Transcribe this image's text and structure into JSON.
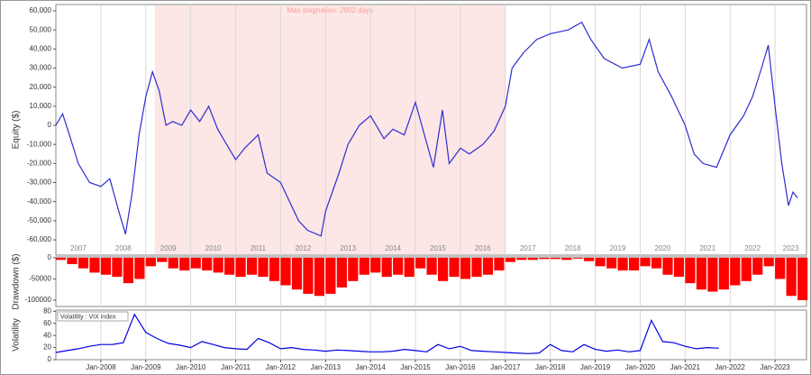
{
  "chart_data": [
    {
      "type": "line",
      "y_label": "Equity ($)",
      "color": "#2d2dd2",
      "xlim": [
        2007.0,
        2023.7
      ],
      "ylim": [
        -68000,
        63300
      ],
      "yticks": [
        {
          "value": 60000,
          "label": "60,000"
        },
        {
          "value": 50000,
          "label": "50,000"
        },
        {
          "value": 40000,
          "label": "40,000"
        },
        {
          "value": 30000,
          "label": "30,000"
        },
        {
          "value": 20000,
          "label": "20,000"
        },
        {
          "value": 10000,
          "label": "10,000"
        },
        0,
        {
          "value": -10000,
          "label": "-10,000"
        },
        {
          "value": -20000,
          "label": "-20,000"
        },
        {
          "value": -30000,
          "label": "-30,000"
        },
        {
          "value": -40000,
          "label": "-40,000"
        },
        {
          "value": -50000,
          "label": "-50,000"
        },
        {
          "value": -60000,
          "label": "-60,000"
        }
      ],
      "xticks": [
        {
          "value": 2007.5,
          "label": "2007"
        },
        {
          "value": 2008.5,
          "label": "2008"
        },
        {
          "value": 2009.5,
          "label": "2009"
        },
        {
          "value": 2010.5,
          "label": "2010"
        },
        {
          "value": 2011.5,
          "label": "2011"
        },
        {
          "value": 2012.5,
          "label": "2012"
        },
        {
          "value": 2013.5,
          "label": "2013"
        },
        {
          "value": 2014.5,
          "label": "2014"
        },
        {
          "value": 2015.5,
          "label": "2015"
        },
        {
          "value": 2016.5,
          "label": "2016"
        },
        {
          "value": 2017.5,
          "label": "2017"
        },
        {
          "value": 2018.5,
          "label": "2018"
        },
        {
          "value": 2019.5,
          "label": "2019"
        },
        {
          "value": 2020.5,
          "label": "2020"
        },
        {
          "value": 2021.5,
          "label": "2021"
        },
        {
          "value": 2022.5,
          "label": "2022"
        },
        {
          "value": 2023.35,
          "label": "2023"
        }
      ],
      "shade": {
        "x": [
          2009.2,
          2017.0
        ],
        "label": "Max stagnation: 2802 days",
        "color": "#fde6e6"
      },
      "x": [
        2007.0,
        2007.15,
        2007.3,
        2007.5,
        2007.75,
        2008.0,
        2008.2,
        2008.4,
        2008.55,
        2008.7,
        2008.85,
        2009.0,
        2009.15,
        2009.3,
        2009.45,
        2009.6,
        2009.8,
        2010.0,
        2010.2,
        2010.4,
        2010.6,
        2010.8,
        2011.0,
        2011.2,
        2011.5,
        2011.7,
        2012.0,
        2012.2,
        2012.4,
        2012.6,
        2012.9,
        2013.0,
        2013.3,
        2013.5,
        2013.75,
        2014.0,
        2014.3,
        2014.5,
        2014.75,
        2015.0,
        2015.2,
        2015.4,
        2015.6,
        2015.75,
        2016.0,
        2016.2,
        2016.5,
        2016.75,
        2017.0,
        2017.15,
        2017.4,
        2017.7,
        2018.0,
        2018.4,
        2018.7,
        2018.9,
        2019.2,
        2019.6,
        2020.0,
        2020.2,
        2020.4,
        2020.7,
        2021.0,
        2021.2,
        2021.4,
        2021.7,
        2022.0,
        2022.3,
        2022.5,
        2022.7,
        2022.85,
        2023.0,
        2023.15,
        2023.3,
        2023.4,
        2023.5
      ],
      "values": [
        0,
        6000,
        -5000,
        -20000,
        -30000,
        -32000,
        -28000,
        -45000,
        -57000,
        -35000,
        -5000,
        15000,
        28000,
        18000,
        0,
        2000,
        0,
        8000,
        2000,
        10000,
        -2000,
        -10000,
        -18000,
        -12000,
        -5000,
        -25000,
        -30000,
        -40000,
        -50000,
        -55000,
        -58000,
        -45000,
        -25000,
        -10000,
        0,
        5000,
        -7000,
        -2000,
        -5000,
        12000,
        -5000,
        -22000,
        8000,
        -20000,
        -12000,
        -15000,
        -10000,
        -3000,
        10000,
        30000,
        38000,
        45000,
        48000,
        50000,
        54000,
        45000,
        35000,
        30000,
        32000,
        45000,
        28000,
        15000,
        0,
        -15000,
        -20000,
        -22000,
        -5000,
        5000,
        15000,
        30000,
        42000,
        10000,
        -20000,
        -42000,
        -35000,
        -38000
      ]
    },
    {
      "type": "bar",
      "y_label": "Drawdown ($)",
      "color": "#ff0000",
      "xlim": [
        2007.0,
        2023.7
      ],
      "ylim": [
        -115000,
        2000
      ],
      "yticks": [
        0,
        -50000,
        -100000
      ],
      "x": [
        2007.0,
        2007.25,
        2007.5,
        2007.75,
        2008.0,
        2008.25,
        2008.5,
        2008.75,
        2009.0,
        2009.25,
        2009.5,
        2009.75,
        2010.0,
        2010.25,
        2010.5,
        2010.75,
        2011.0,
        2011.25,
        2011.5,
        2011.75,
        2012.0,
        2012.25,
        2012.5,
        2012.75,
        2013.0,
        2013.25,
        2013.5,
        2013.75,
        2014.0,
        2014.25,
        2014.5,
        2014.75,
        2015.0,
        2015.25,
        2015.5,
        2015.75,
        2016.0,
        2016.25,
        2016.5,
        2016.75,
        2017.0,
        2017.25,
        2017.5,
        2017.75,
        2018.0,
        2018.25,
        2018.5,
        2018.75,
        2019.0,
        2019.25,
        2019.5,
        2019.75,
        2020.0,
        2020.25,
        2020.5,
        2020.75,
        2021.0,
        2021.25,
        2021.5,
        2021.75,
        2022.0,
        2022.25,
        2022.5,
        2022.75,
        2023.0,
        2023.25,
        2023.5
      ],
      "values": [
        -5000,
        -15000,
        -25000,
        -35000,
        -40000,
        -45000,
        -60000,
        -50000,
        -20000,
        -10000,
        -25000,
        -30000,
        -25000,
        -30000,
        -35000,
        -40000,
        -45000,
        -40000,
        -45000,
        -55000,
        -65000,
        -75000,
        -85000,
        -90000,
        -85000,
        -70000,
        -55000,
        -40000,
        -35000,
        -45000,
        -40000,
        -45000,
        -25000,
        -40000,
        -55000,
        -45000,
        -50000,
        -45000,
        -40000,
        -30000,
        -10000,
        -5000,
        -5000,
        -3000,
        -3000,
        -5000,
        -2000,
        -8000,
        -20000,
        -25000,
        -30000,
        -30000,
        -20000,
        -25000,
        -40000,
        -45000,
        -60000,
        -75000,
        -80000,
        -75000,
        -65000,
        -55000,
        -40000,
        -20000,
        -50000,
        -90000,
        -100000
      ]
    },
    {
      "type": "line",
      "y_label": "Volatility",
      "xlim": [
        2007.0,
        2023.7
      ],
      "ylim": [
        0,
        82
      ],
      "yticks": [
        0,
        20,
        40,
        60,
        80
      ],
      "xticks": [
        {
          "value": 2008,
          "label": "Jan-2008"
        },
        {
          "value": 2009,
          "label": "Jan-2009"
        },
        {
          "value": 2010,
          "label": "Jan-2010"
        },
        {
          "value": 2011,
          "label": "Jan-2011"
        },
        {
          "value": 2012,
          "label": "Jan-2012"
        },
        {
          "value": 2013,
          "label": "Jan-2013"
        },
        {
          "value": 2014,
          "label": "Jan-2014"
        },
        {
          "value": 2015,
          "label": "Jan-2015"
        },
        {
          "value": 2016,
          "label": "Jan-2016"
        },
        {
          "value": 2017,
          "label": "Jan-2017"
        },
        {
          "value": 2018,
          "label": "Jan-2018"
        },
        {
          "value": 2019,
          "label": "Jan-2019"
        },
        {
          "value": 2020,
          "label": "Jan-2020"
        },
        {
          "value": 2021,
          "label": "Jan-2021"
        },
        {
          "value": 2022,
          "label": "Jan-2022"
        },
        {
          "value": 2023,
          "label": "Jan-2023"
        }
      ],
      "series": [
        {
          "name": "Volatility : VIX index",
          "color": "#0000e6",
          "x": [
            2007.0,
            2007.25,
            2007.5,
            2007.75,
            2008.0,
            2008.25,
            2008.5,
            2008.75,
            2009.0,
            2009.25,
            2009.5,
            2009.75,
            2010.0,
            2010.25,
            2010.5,
            2010.75,
            2011.0,
            2011.25,
            2011.5,
            2011.75,
            2012.0,
            2012.25,
            2012.5,
            2012.75,
            2013.0,
            2013.25,
            2013.5,
            2013.75,
            2014.0,
            2014.25,
            2014.5,
            2014.75,
            2015.0,
            2015.25,
            2015.5,
            2015.75,
            2016.0,
            2016.25,
            2016.5,
            2016.75,
            2017.0,
            2017.25,
            2017.5,
            2017.75,
            2018.0,
            2018.25,
            2018.5,
            2018.75,
            2019.0,
            2019.25,
            2019.5,
            2019.75,
            2020.0,
            2020.25,
            2020.5,
            2020.75,
            2021.0,
            2021.25,
            2021.5,
            2021.75
          ],
          "values": [
            12,
            15,
            18,
            22,
            25,
            25,
            28,
            75,
            45,
            35,
            27,
            24,
            20,
            30,
            25,
            20,
            18,
            17,
            35,
            28,
            18,
            20,
            17,
            16,
            14,
            16,
            15,
            14,
            13,
            13,
            14,
            17,
            15,
            13,
            25,
            18,
            22,
            15,
            14,
            13,
            12,
            11,
            10,
            11,
            25,
            15,
            13,
            25,
            17,
            14,
            16,
            13,
            15,
            65,
            30,
            28,
            22,
            18,
            20,
            19
          ]
        }
      ]
    }
  ]
}
